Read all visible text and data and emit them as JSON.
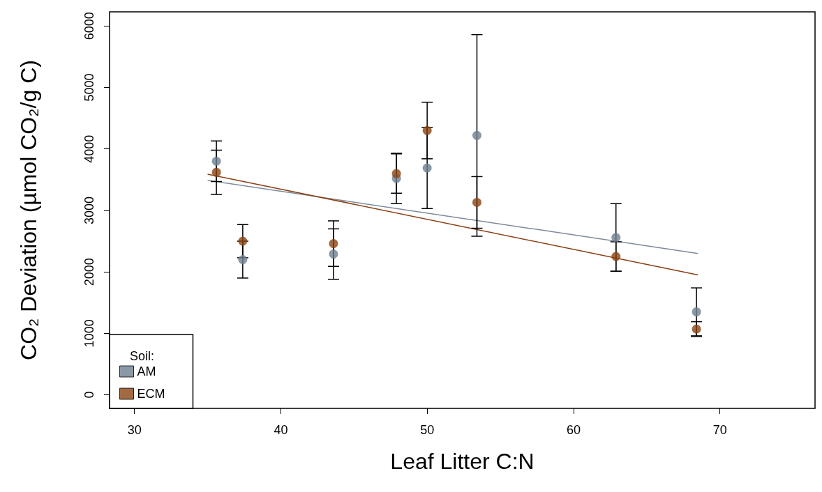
{
  "chart_data": {
    "type": "scatter",
    "xlabel": "Leaf Litter C:N",
    "ylabel": "CO₂ Deviation (µmol CO₂/g C)",
    "legend_title": "Soil:",
    "legend": "bottom left",
    "grid": false,
    "marker": "circle",
    "xlim": [
      28.3,
      76.5
    ],
    "xticks": [
      30,
      40,
      50,
      60,
      70
    ],
    "ylim": [
      -220,
      6230
    ],
    "yticks": [
      0,
      1000,
      2000,
      3000,
      4000,
      5000,
      6000
    ],
    "series": [
      {
        "type": "line",
        "marker": "none",
        "color": "#7d8a99",
        "x": [
          35.0,
          68.5
        ],
        "values": [
          3490,
          2300
        ]
      },
      {
        "type": "line",
        "marker": "none",
        "color": "#8b3f12",
        "x": [
          35.0,
          68.5
        ],
        "values": [
          3590,
          1950
        ]
      },
      {
        "name": "AM",
        "color": "#6e7f91",
        "x": [
          35.6,
          37.4,
          43.6,
          47.9,
          50.0,
          53.4,
          62.9,
          68.4
        ],
        "values": [
          3800,
          2200,
          2290,
          3520,
          3690,
          4220,
          2560,
          1350
        ],
        "errors": [
          330,
          300,
          410,
          410,
          660,
          1640,
          550,
          390
        ]
      },
      {
        "name": "ECM",
        "color": "#8b4513",
        "x": [
          35.6,
          37.4,
          43.6,
          47.9,
          50.0,
          53.4,
          62.9,
          68.4
        ],
        "values": [
          3620,
          2500,
          2460,
          3600,
          4300,
          3130,
          2250,
          1070
        ],
        "errors": [
          360,
          270,
          370,
          320,
          460,
          420,
          240,
          120
        ]
      }
    ]
  }
}
